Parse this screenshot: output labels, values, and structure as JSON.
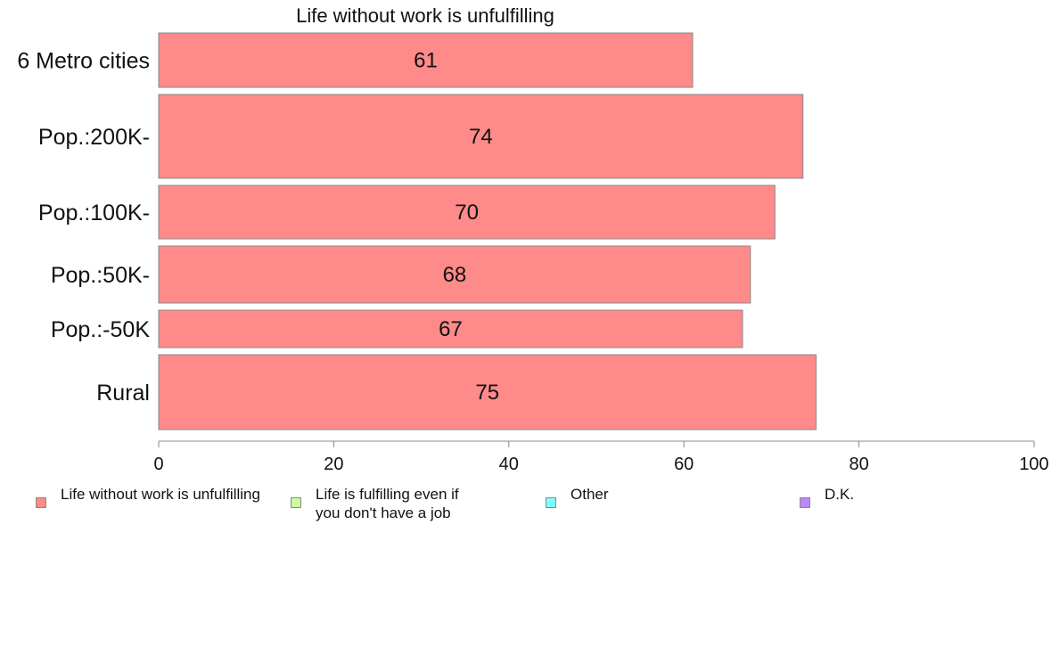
{
  "chart_data": {
    "type": "bar",
    "orientation": "horizontal",
    "title": "Life without work is unfulfilling",
    "categories": [
      "6 Metro cities",
      "Pop.:200K-",
      "Pop.:100K-",
      "Pop.:50K-",
      "Pop.:-50K",
      "Rural"
    ],
    "series": [
      {
        "name": "Life without work is unfulfilling",
        "values": [
          61,
          74,
          70,
          68,
          67,
          75
        ]
      }
    ],
    "data_labels": [
      "61",
      "74",
      "70",
      "68",
      "67",
      "75"
    ],
    "bar_values_exact": [
      61,
      73.6,
      70.4,
      67.6,
      66.7,
      75.1
    ],
    "x_ticks": [
      "0",
      "20",
      "40",
      "60",
      "80",
      "100"
    ],
    "xlim": [
      0,
      100
    ],
    "xlabel": "",
    "ylabel": "",
    "grid": false,
    "bar_color": "#ff8a8a",
    "legend_position": "bottom",
    "legend": [
      {
        "label": "Life without work is unfulfilling",
        "color": "#ff8a8a"
      },
      {
        "label": "Life is fulfilling even if\nyou don't have a job",
        "color": "#ccff99"
      },
      {
        "label": "Other",
        "color": "#80ffff"
      },
      {
        "label": "D.K.",
        "color": "#bb88ff"
      }
    ]
  }
}
